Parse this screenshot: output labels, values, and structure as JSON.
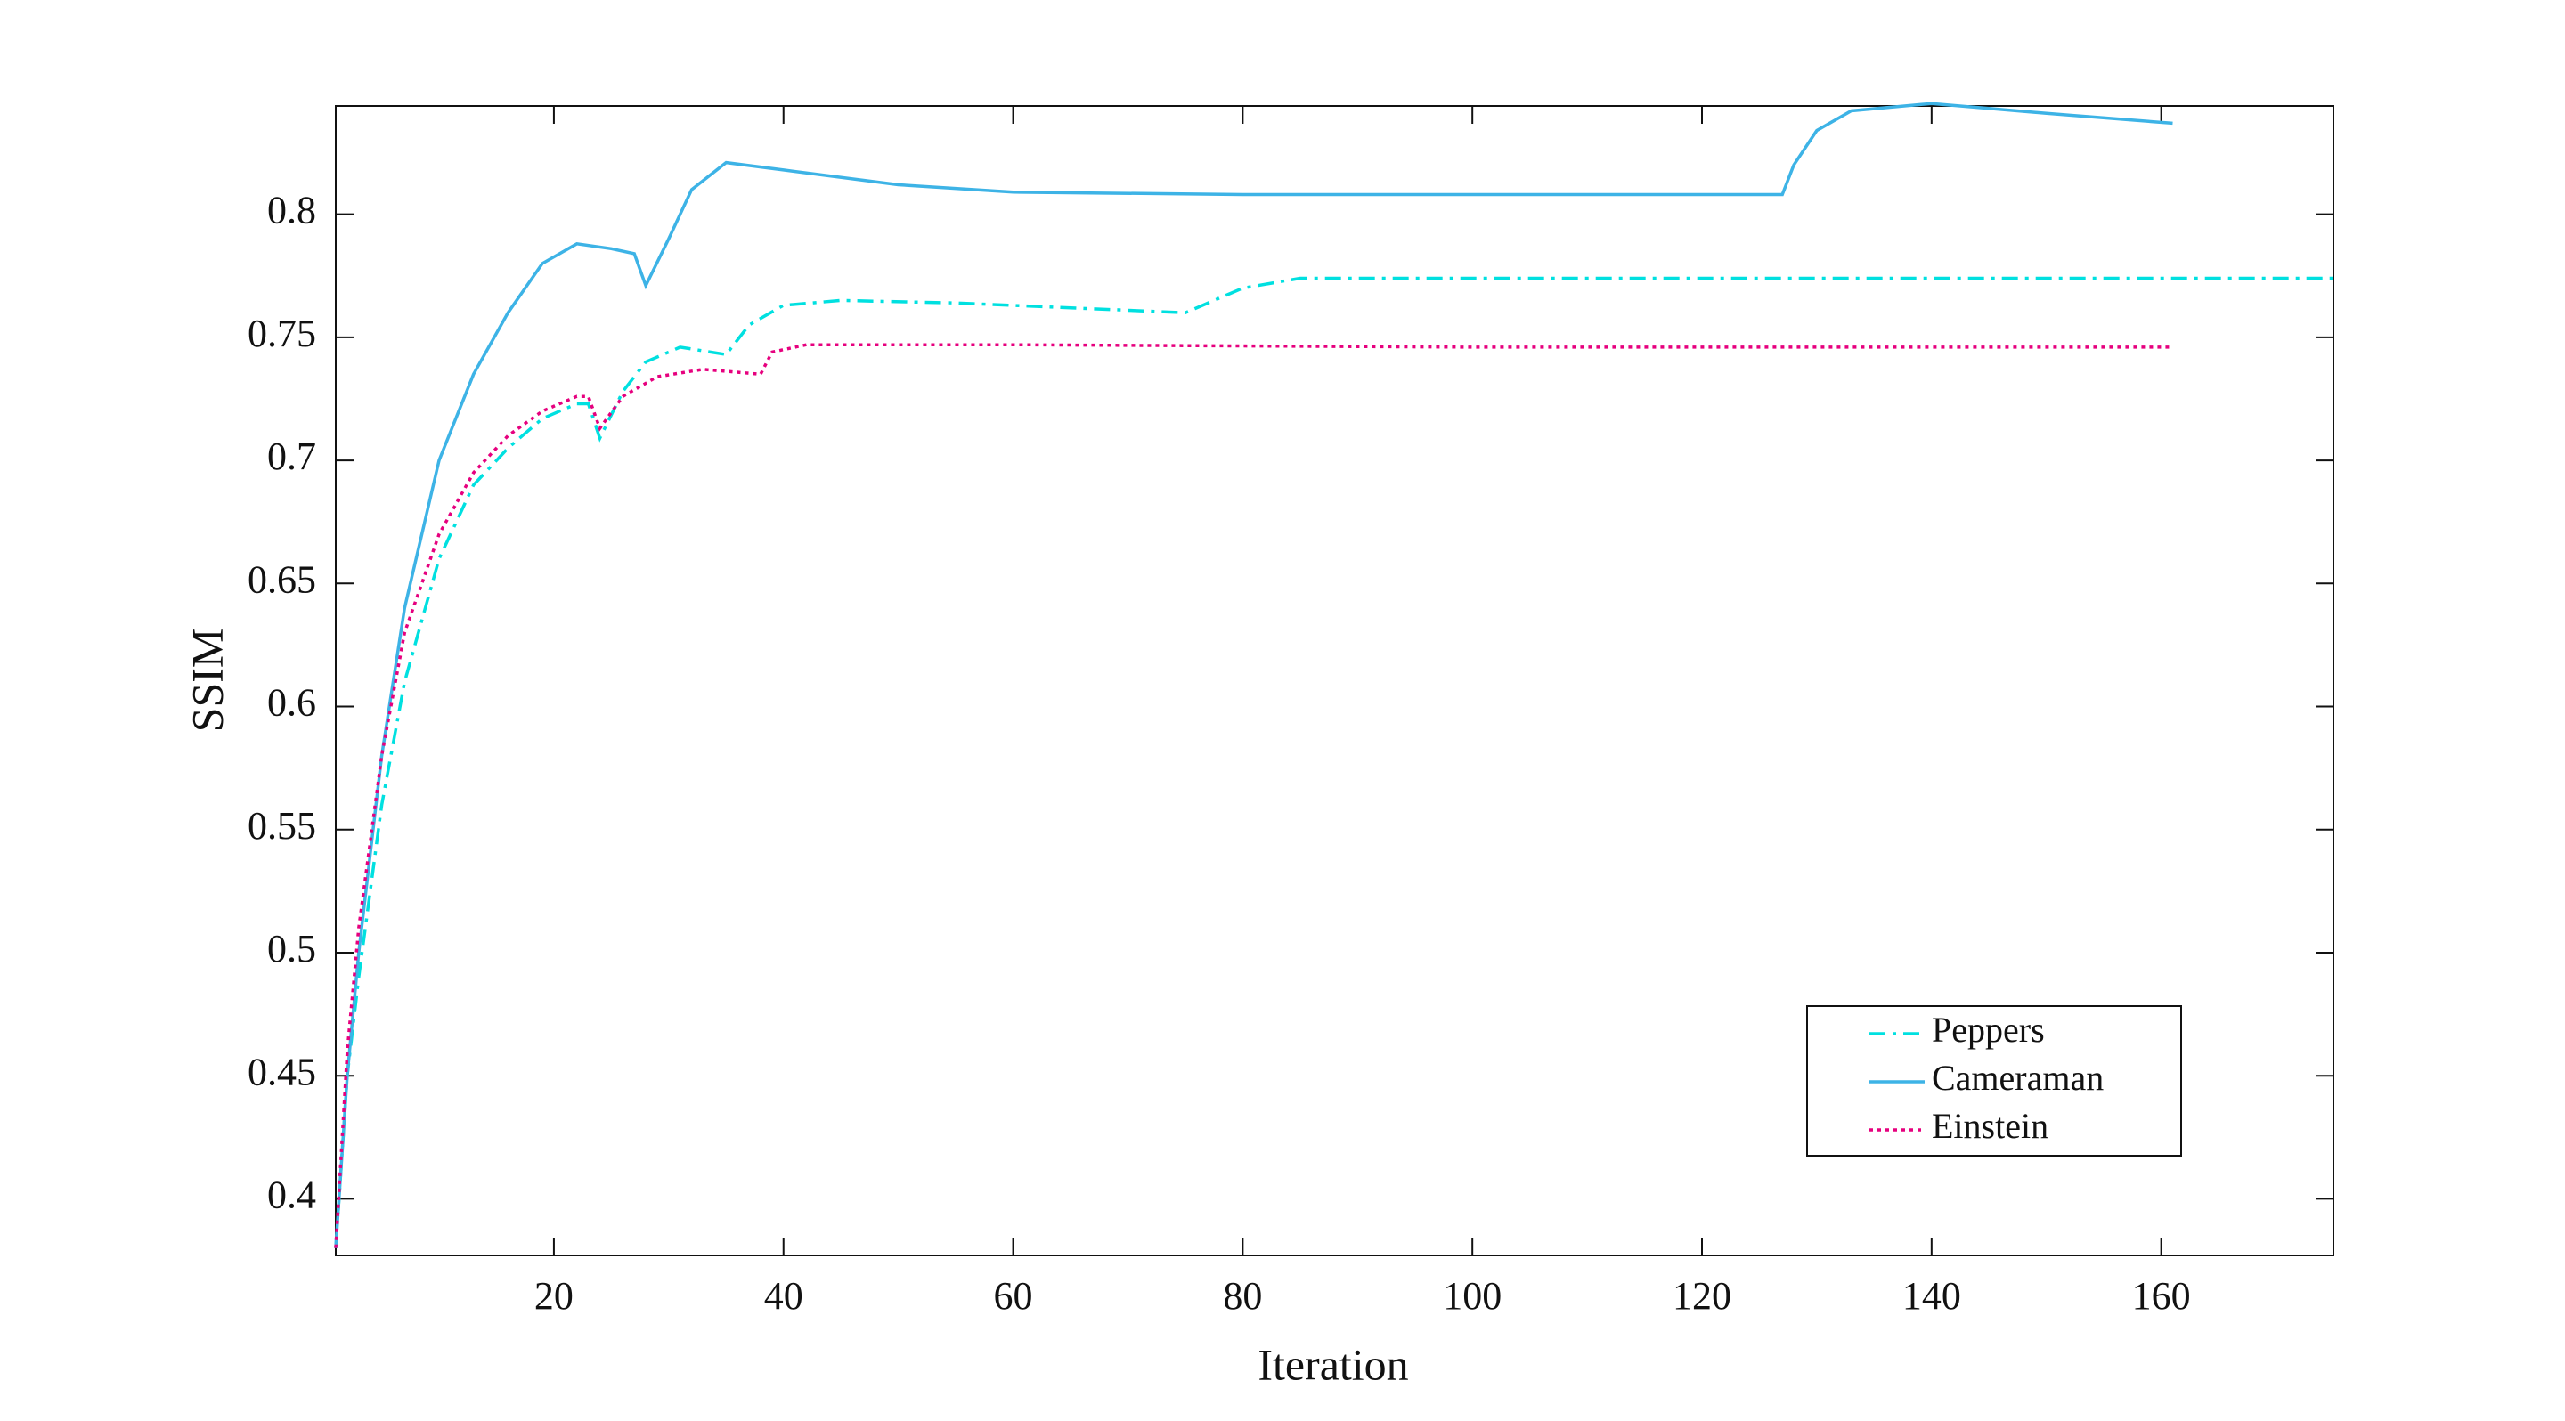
{
  "chart_data": {
    "type": "line",
    "xlabel": "Iteration",
    "ylabel": "SSIM",
    "xlim": [
      1,
      175
    ],
    "ylim": [
      0.377,
      0.844
    ],
    "xticks": [
      20,
      40,
      60,
      80,
      100,
      120,
      140,
      160
    ],
    "yticks": [
      0.4,
      0.45,
      0.5,
      0.55,
      0.6,
      0.65,
      0.7,
      0.75,
      0.8
    ],
    "legend": "lower right",
    "series": [
      {
        "name": "Peppers",
        "color": "#00e0e0",
        "linestyle": "dash-dot",
        "x": [
          1,
          2,
          3,
          5,
          7,
          10,
          13,
          16,
          19,
          22,
          23,
          24,
          26,
          28,
          31,
          35,
          37,
          40,
          45,
          55,
          75,
          80,
          85,
          100,
          175
        ],
        "values": [
          0.38,
          0.45,
          0.49,
          0.56,
          0.61,
          0.66,
          0.69,
          0.705,
          0.717,
          0.723,
          0.723,
          0.709,
          0.728,
          0.74,
          0.746,
          0.743,
          0.755,
          0.763,
          0.765,
          0.764,
          0.76,
          0.77,
          0.774,
          0.774,
          0.774
        ]
      },
      {
        "name": "Cameraman",
        "color": "#3db3e6",
        "linestyle": "solid",
        "x": [
          1,
          2,
          3,
          5,
          7,
          10,
          13,
          16,
          19,
          22,
          25,
          27,
          28,
          30,
          32,
          35,
          40,
          50,
          60,
          80,
          100,
          127,
          128,
          130,
          133,
          140,
          150,
          161
        ],
        "values": [
          0.38,
          0.45,
          0.5,
          0.58,
          0.64,
          0.7,
          0.735,
          0.76,
          0.78,
          0.788,
          0.786,
          0.784,
          0.771,
          0.79,
          0.81,
          0.821,
          0.818,
          0.812,
          0.809,
          0.808,
          0.808,
          0.808,
          0.82,
          0.834,
          0.842,
          0.845,
          0.841,
          0.837
        ]
      },
      {
        "name": "Einstein",
        "color": "#e6007e",
        "linestyle": "dotted",
        "x": [
          1,
          2,
          3,
          5,
          7,
          10,
          13,
          16,
          19,
          22,
          23,
          24,
          26,
          29,
          33,
          38,
          39,
          42,
          60,
          100,
          161
        ],
        "values": [
          0.38,
          0.46,
          0.51,
          0.58,
          0.63,
          0.67,
          0.695,
          0.71,
          0.72,
          0.726,
          0.726,
          0.713,
          0.726,
          0.734,
          0.737,
          0.735,
          0.744,
          0.747,
          0.747,
          0.746,
          0.746
        ]
      }
    ]
  }
}
